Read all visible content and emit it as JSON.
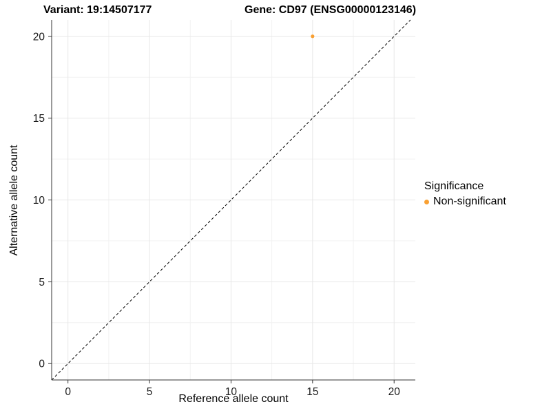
{
  "titles": {
    "variant": "Variant: 19:14507177",
    "gene": "Gene: CD97 (ENSG00000123146)"
  },
  "chart_data": {
    "type": "scatter",
    "xlabel": "Reference allele count",
    "ylabel": "Alternative allele count",
    "xlim": [
      -1,
      21.3
    ],
    "ylim": [
      -1,
      21
    ],
    "xticks": [
      0,
      5,
      10,
      15,
      20
    ],
    "yticks": [
      0,
      5,
      10,
      15,
      20
    ],
    "xticks_minor": [
      2.5,
      7.5,
      12.5,
      17.5
    ],
    "yticks_minor": [
      2.5,
      7.5,
      12.5,
      17.5
    ],
    "grid": true,
    "background": "#ffffff",
    "reference_line": {
      "type": "abline",
      "slope": 1,
      "intercept": 0,
      "style": "dashed",
      "color": "#000000"
    },
    "series": [
      {
        "name": "Non-significant",
        "color": "#F9A032",
        "points": [
          {
            "x": 15,
            "y": 20
          }
        ]
      }
    ],
    "legend": {
      "title": "Significance",
      "position": "right",
      "entries": [
        {
          "label": "Non-significant",
          "color": "#F9A032"
        }
      ]
    },
    "colors": {
      "grid_major": "#E7E7E7",
      "grid_minor": "#F2F2F2",
      "axis_line": "#333333",
      "tick_label": "#1A1A1A"
    }
  }
}
